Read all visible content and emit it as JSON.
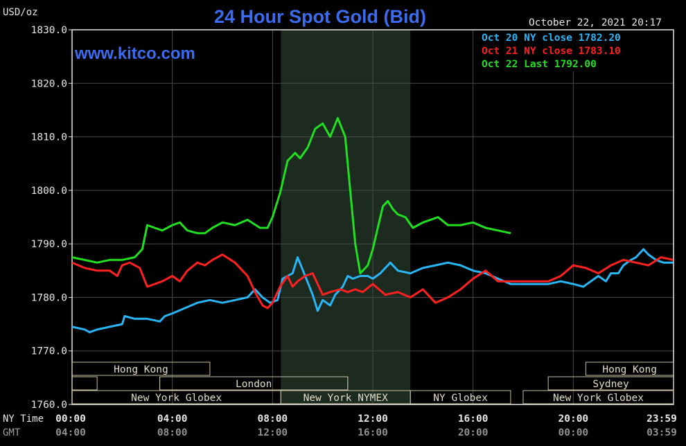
{
  "chart_data": {
    "type": "line",
    "title": "24 Hour Spot Gold (Bid)",
    "ylabel": "USD/oz",
    "site": "www.kitco.com",
    "timestamp": "October 22, 2021 20:17",
    "ylim": [
      1760,
      1830
    ],
    "yticks": [
      "1830.0",
      "1820.0",
      "1810.0",
      "1800.0",
      "1790.0",
      "1780.0",
      "1770.0",
      "1760.0"
    ],
    "x_axis": {
      "row1_label": "NY Time",
      "row2_label": "GMT",
      "ny_ticks": [
        "00:00",
        "04:00",
        "08:00",
        "12:00",
        "16:00",
        "20:00",
        "23:59"
      ],
      "gmt_ticks": [
        "04:00",
        "08:00",
        "12:00",
        "16:00",
        "20:00",
        "00:00",
        "03:59"
      ]
    },
    "nymex_shading_hours": [
      8.33,
      13.5
    ],
    "legend": [
      {
        "text": "Oct 20 NY close 1782.20",
        "color": "#29b6f6"
      },
      {
        "text": "Oct 21 NY close 1783.10",
        "color": "#ff2020"
      },
      {
        "text": "Oct 22 Last 1792.00",
        "color": "#20e020"
      }
    ],
    "sessions": [
      {
        "label": "Hong Kong",
        "start": 0,
        "end": 5.5,
        "row": 0
      },
      {
        "label": "",
        "start": 0,
        "end": 1,
        "row": 1
      },
      {
        "label": "",
        "start": 3.5,
        "end": 11,
        "row": 1
      },
      {
        "label": "London",
        "start": 3.5,
        "end": 11,
        "row": 1
      },
      {
        "label": "New York Globex",
        "start": 0,
        "end": 8.33,
        "row": 2
      },
      {
        "label": "New York NYMEX",
        "start": 8.33,
        "end": 13.5,
        "row": 2
      },
      {
        "label": "NY Globex",
        "start": 13.5,
        "end": 17.5,
        "row": 2
      },
      {
        "label": "Hong Kong",
        "start": 20.5,
        "end": 24,
        "row": 0
      },
      {
        "label": "Sydney",
        "start": 19,
        "end": 24,
        "row": 1
      },
      {
        "label": "New York Globex",
        "start": 18,
        "end": 24,
        "row": 2
      }
    ],
    "series": [
      {
        "name": "Oct 20 NY close 1782.20",
        "color": "#29b6f6",
        "x": [
          0,
          0.5,
          0.7,
          1,
          1.5,
          2,
          2.1,
          2.5,
          3,
          3.5,
          3.7,
          4,
          4.5,
          5,
          5.5,
          6,
          6.5,
          7,
          7.3,
          7.6,
          7.9,
          8.2,
          8.4,
          8.8,
          9,
          9.3,
          9.6,
          9.8,
          10,
          10.3,
          10.5,
          10.8,
          11,
          11.2,
          11.5,
          11.8,
          12,
          12.3,
          12.5,
          12.7,
          13,
          13.5,
          14,
          14.5,
          15,
          15.5,
          16,
          16.5,
          17,
          17.5,
          18,
          18.5,
          19,
          19.5,
          20,
          20.4,
          20.7,
          21,
          21.3,
          21.5,
          21.8,
          22,
          22.3,
          22.5,
          22.8,
          23,
          23.3,
          23.6,
          23.99
        ],
        "y": [
          1774.5,
          1774,
          1773.5,
          1774,
          1774.5,
          1775,
          1776.5,
          1776,
          1776,
          1775.5,
          1776.5,
          1777,
          1778,
          1779,
          1779.5,
          1779,
          1779.5,
          1780,
          1781.5,
          1780,
          1779,
          1779.5,
          1783.5,
          1784.5,
          1787.5,
          1784,
          1780.5,
          1777.5,
          1779.5,
          1778.5,
          1780.5,
          1782,
          1784,
          1783.5,
          1784,
          1784,
          1783.5,
          1784.5,
          1785.5,
          1786.5,
          1785,
          1784.5,
          1785.5,
          1786,
          1786.5,
          1786,
          1785,
          1784.5,
          1783.5,
          1782.5,
          1782.5,
          1782.5,
          1782.5,
          1783,
          1782.5,
          1782,
          1783,
          1784,
          1783,
          1784.5,
          1784.5,
          1786,
          1787,
          1787.5,
          1789,
          1788,
          1787,
          1786.5,
          1786.5
        ]
      },
      {
        "name": "Oct 21 NY close 1783.10",
        "color": "#ff2020",
        "x": [
          0,
          0.5,
          1,
          1.5,
          1.8,
          2,
          2.3,
          2.7,
          3,
          3.3,
          3.6,
          4,
          4.3,
          4.6,
          5,
          5.3,
          5.6,
          6,
          6.5,
          7,
          7.3,
          7.6,
          7.8,
          8,
          8.3,
          8.6,
          8.8,
          9,
          9.3,
          9.6,
          10,
          10.3,
          10.7,
          11,
          11.3,
          11.6,
          12,
          12.5,
          13,
          13.5,
          14,
          14.5,
          15,
          15.5,
          16,
          16.5,
          17,
          17.5,
          18,
          18.5,
          19,
          19.5,
          20,
          20.5,
          21,
          21.5,
          22,
          22.5,
          23,
          23.5,
          23.99
        ],
        "y": [
          1786.5,
          1785.5,
          1785,
          1785,
          1784,
          1786,
          1786.5,
          1785.5,
          1782,
          1782.5,
          1783,
          1784,
          1783,
          1785,
          1786.5,
          1786,
          1787,
          1788,
          1786.5,
          1784,
          1781,
          1778.5,
          1778,
          1779,
          1782,
          1784,
          1782,
          1783,
          1784,
          1784.5,
          1780.5,
          1781,
          1781.5,
          1781,
          1781.5,
          1781,
          1782.5,
          1780.5,
          1781,
          1780,
          1781.5,
          1779,
          1780,
          1781.5,
          1783.5,
          1785,
          1783,
          1783,
          1783,
          1783,
          1783,
          1784,
          1786,
          1785.5,
          1784.5,
          1786,
          1787,
          1786.5,
          1786,
          1787.5,
          1787
        ]
      },
      {
        "name": "Oct 22 Last 1792.00",
        "color": "#20e020",
        "x": [
          0,
          0.5,
          1,
          1.5,
          2,
          2.5,
          2.8,
          3,
          3.3,
          3.6,
          4,
          4.3,
          4.6,
          5,
          5.3,
          5.6,
          6,
          6.5,
          7,
          7.5,
          7.8,
          8,
          8.3,
          8.6,
          8.9,
          9.1,
          9.4,
          9.7,
          10,
          10.3,
          10.6,
          10.9,
          11.1,
          11.3,
          11.5,
          11.8,
          12,
          12.2,
          12.4,
          12.6,
          12.8,
          13,
          13.3,
          13.6,
          14,
          14.3,
          14.6,
          15,
          15.5,
          16,
          16.5,
          17,
          17.5
        ],
        "y": [
          1787.5,
          1787,
          1786.5,
          1787,
          1787,
          1787.5,
          1789,
          1793.5,
          1793,
          1792.5,
          1793.5,
          1794,
          1792.5,
          1792,
          1792,
          1793,
          1794,
          1793.5,
          1794.5,
          1793,
          1793,
          1795,
          1799.5,
          1805.5,
          1807,
          1806,
          1808,
          1811.5,
          1812.5,
          1810,
          1813.5,
          1810,
          1800,
          1790,
          1784.5,
          1786,
          1789,
          1793,
          1797,
          1798,
          1796.5,
          1795.5,
          1795,
          1793,
          1794,
          1794.5,
          1795,
          1793.5,
          1793.5,
          1794,
          1793,
          1792.5,
          1792
        ]
      }
    ]
  }
}
